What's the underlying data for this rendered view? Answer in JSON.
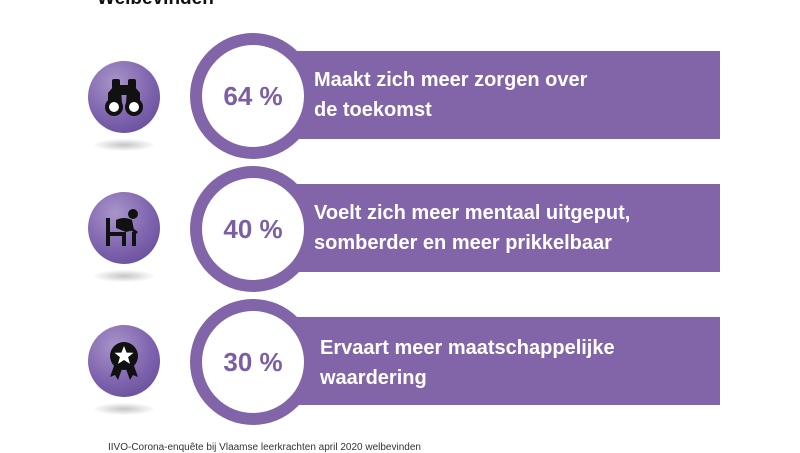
{
  "title": "Welbevinden",
  "colors": {
    "accent": "#8265a8",
    "percent_text": "#7b5fa5"
  },
  "items": [
    {
      "icon": "binoculars-icon",
      "percent": "64 %",
      "text": "Maakt zich meer zorgen over\nde toekomst"
    },
    {
      "icon": "tired-person-icon",
      "percent": "40 %",
      "text": "Voelt zich meer mentaal uitgeput,\nsomberder en meer prikkelbaar"
    },
    {
      "icon": "award-ribbon-icon",
      "percent": "30 %",
      "text": "Ervaart meer maatschappelijke\nwaardering"
    }
  ],
  "footer": "IIVO-Corona-enquête bij Vlaamse leerkrachten april 2020 welbevinden"
}
